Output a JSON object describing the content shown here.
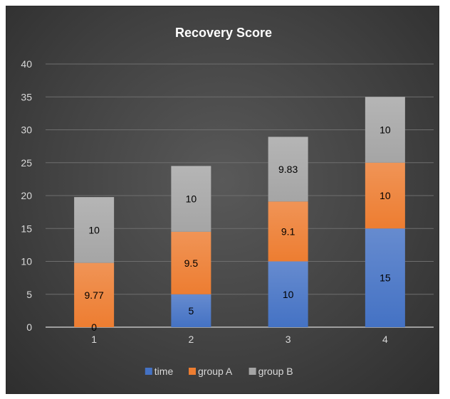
{
  "chart_data": {
    "type": "bar",
    "stacked": true,
    "title": "Recovery Score",
    "categories": [
      "1",
      "2",
      "3",
      "4"
    ],
    "ylim": [
      0,
      40
    ],
    "yticks": [
      0,
      5,
      10,
      15,
      20,
      25,
      30,
      35,
      40
    ],
    "grid": true,
    "legend_position": "bottom",
    "series": [
      {
        "name": "time",
        "color": "#4472c4",
        "values": [
          0,
          5,
          10,
          15
        ],
        "labels": [
          "0",
          "5",
          "10",
          "15"
        ]
      },
      {
        "name": "group A",
        "color": "#ed7d31",
        "values": [
          9.77,
          9.5,
          9.1,
          10
        ],
        "labels": [
          "9.77",
          "9.5",
          "9.1",
          "10"
        ]
      },
      {
        "name": "group B",
        "color": "#a5a5a5",
        "values": [
          10,
          10,
          9.83,
          10
        ],
        "labels": [
          "10",
          "10",
          "9.83",
          "10"
        ]
      }
    ]
  }
}
